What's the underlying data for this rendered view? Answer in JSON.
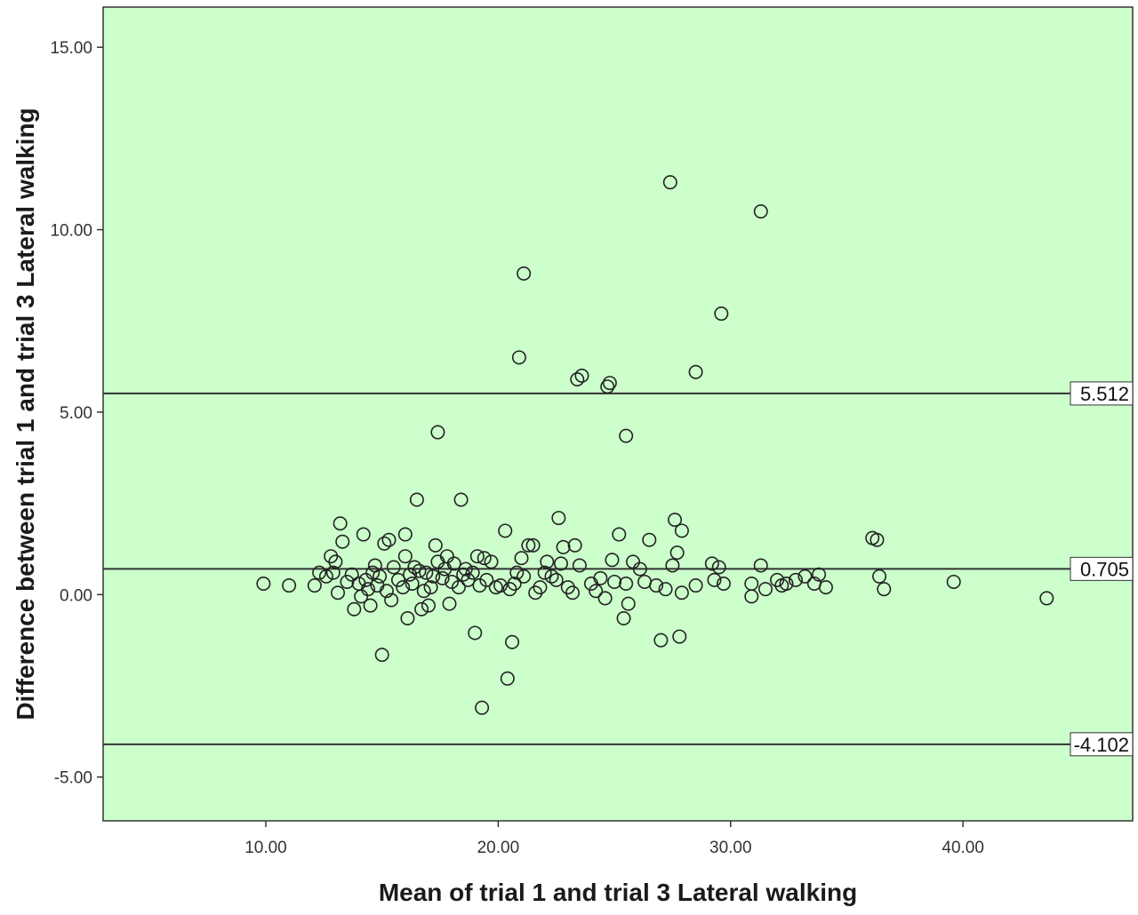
{
  "chart_data": {
    "type": "scatter",
    "xlabel": "Mean of trial 1 and trial 3 Lateral walking",
    "ylabel": "Difference between trial 1 and trial 3 Lateral walking",
    "xlim": [
      3.0,
      47.3
    ],
    "ylim": [
      -6.2,
      16.1
    ],
    "x_ticks": [
      10.0,
      20.0,
      30.0,
      40.0
    ],
    "x_tick_labels": [
      "10.00",
      "20.00",
      "30.00",
      "40.00"
    ],
    "y_ticks": [
      -5.0,
      0.0,
      5.0,
      10.0,
      15.0
    ],
    "y_tick_labels": [
      "-5.00",
      "0.00",
      "5.00",
      "10.00",
      "15.00"
    ],
    "grid": false,
    "reference_lines": [
      {
        "y": 5.512,
        "label": "5.512"
      },
      {
        "y": 0.705,
        "label": "0.705"
      },
      {
        "y": -4.102,
        "label": "-4.102"
      }
    ],
    "colors": {
      "background": "#ccffcc",
      "marker": "#222222",
      "line": "#333333"
    },
    "points": [
      [
        9.9,
        0.3
      ],
      [
        11.0,
        0.25
      ],
      [
        12.1,
        0.25
      ],
      [
        12.3,
        0.6
      ],
      [
        12.6,
        0.5
      ],
      [
        12.8,
        1.05
      ],
      [
        12.9,
        0.6
      ],
      [
        13.0,
        0.9
      ],
      [
        13.1,
        0.05
      ],
      [
        13.2,
        1.95
      ],
      [
        13.3,
        1.45
      ],
      [
        13.5,
        0.35
      ],
      [
        13.7,
        0.55
      ],
      [
        13.8,
        -0.4
      ],
      [
        14.0,
        0.3
      ],
      [
        14.1,
        -0.05
      ],
      [
        14.2,
        1.65
      ],
      [
        14.3,
        0.4
      ],
      [
        14.4,
        0.15
      ],
      [
        14.5,
        -0.3
      ],
      [
        14.6,
        0.6
      ],
      [
        14.7,
        0.8
      ],
      [
        14.8,
        0.25
      ],
      [
        14.9,
        0.5
      ],
      [
        15.0,
        -1.65
      ],
      [
        15.1,
        1.4
      ],
      [
        15.2,
        0.1
      ],
      [
        15.3,
        1.5
      ],
      [
        15.4,
        -0.15
      ],
      [
        15.5,
        0.75
      ],
      [
        15.7,
        0.4
      ],
      [
        15.9,
        0.2
      ],
      [
        16.0,
        1.05
      ],
      [
        16.0,
        1.65
      ],
      [
        16.1,
        -0.65
      ],
      [
        16.2,
        0.55
      ],
      [
        16.3,
        0.3
      ],
      [
        16.4,
        0.75
      ],
      [
        16.5,
        2.6
      ],
      [
        16.6,
        0.65
      ],
      [
        16.7,
        -0.4
      ],
      [
        16.8,
        0.1
      ],
      [
        16.9,
        0.6
      ],
      [
        17.0,
        -0.3
      ],
      [
        17.1,
        0.2
      ],
      [
        17.2,
        0.5
      ],
      [
        17.3,
        1.35
      ],
      [
        17.4,
        0.9
      ],
      [
        17.4,
        4.45
      ],
      [
        17.6,
        0.45
      ],
      [
        17.7,
        0.7
      ],
      [
        17.8,
        1.05
      ],
      [
        17.9,
        -0.25
      ],
      [
        18.0,
        0.35
      ],
      [
        18.1,
        0.85
      ],
      [
        18.3,
        0.2
      ],
      [
        18.4,
        2.6
      ],
      [
        18.5,
        0.55
      ],
      [
        18.6,
        0.7
      ],
      [
        18.7,
        0.4
      ],
      [
        18.9,
        0.6
      ],
      [
        19.0,
        -1.05
      ],
      [
        19.1,
        1.05
      ],
      [
        19.2,
        0.25
      ],
      [
        19.3,
        -3.1
      ],
      [
        19.4,
        1.0
      ],
      [
        19.5,
        0.4
      ],
      [
        19.7,
        0.9
      ],
      [
        19.9,
        0.2
      ],
      [
        20.1,
        0.25
      ],
      [
        20.3,
        1.75
      ],
      [
        20.4,
        -2.3
      ],
      [
        20.5,
        0.15
      ],
      [
        20.6,
        -1.3
      ],
      [
        20.7,
        0.3
      ],
      [
        20.8,
        0.6
      ],
      [
        20.9,
        6.5
      ],
      [
        21.0,
        1.0
      ],
      [
        21.1,
        0.5
      ],
      [
        21.1,
        8.8
      ],
      [
        21.3,
        1.35
      ],
      [
        21.5,
        1.35
      ],
      [
        21.6,
        0.05
      ],
      [
        21.8,
        0.2
      ],
      [
        22.0,
        0.6
      ],
      [
        22.1,
        0.9
      ],
      [
        22.3,
        0.5
      ],
      [
        22.5,
        0.4
      ],
      [
        22.6,
        2.1
      ],
      [
        22.7,
        0.85
      ],
      [
        22.8,
        1.3
      ],
      [
        23.0,
        0.2
      ],
      [
        23.2,
        0.05
      ],
      [
        23.3,
        1.35
      ],
      [
        23.4,
        5.9
      ],
      [
        23.5,
        0.8
      ],
      [
        23.6,
        6.0
      ],
      [
        24.0,
        0.3
      ],
      [
        24.2,
        0.1
      ],
      [
        24.4,
        0.45
      ],
      [
        24.6,
        -0.1
      ],
      [
        24.7,
        5.7
      ],
      [
        24.8,
        5.8
      ],
      [
        24.9,
        0.95
      ],
      [
        25.0,
        0.35
      ],
      [
        25.2,
        1.65
      ],
      [
        25.4,
        -0.65
      ],
      [
        25.5,
        0.3
      ],
      [
        25.5,
        4.35
      ],
      [
        25.6,
        -0.25
      ],
      [
        25.8,
        0.9
      ],
      [
        26.1,
        0.7
      ],
      [
        26.3,
        0.35
      ],
      [
        26.5,
        1.5
      ],
      [
        26.8,
        0.25
      ],
      [
        27.0,
        -1.25
      ],
      [
        27.2,
        0.15
      ],
      [
        27.4,
        11.3
      ],
      [
        27.5,
        0.8
      ],
      [
        27.6,
        2.05
      ],
      [
        27.7,
        1.15
      ],
      [
        27.8,
        -1.15
      ],
      [
        27.9,
        1.75
      ],
      [
        27.9,
        0.05
      ],
      [
        28.5,
        6.1
      ],
      [
        28.5,
        0.25
      ],
      [
        29.2,
        0.85
      ],
      [
        29.3,
        0.4
      ],
      [
        29.5,
        0.75
      ],
      [
        29.6,
        7.7
      ],
      [
        29.7,
        0.3
      ],
      [
        30.9,
        0.3
      ],
      [
        30.9,
        -0.05
      ],
      [
        31.3,
        10.5
      ],
      [
        31.3,
        0.8
      ],
      [
        31.5,
        0.15
      ],
      [
        32.0,
        0.4
      ],
      [
        32.2,
        0.25
      ],
      [
        32.4,
        0.3
      ],
      [
        32.8,
        0.4
      ],
      [
        33.2,
        0.5
      ],
      [
        33.6,
        0.3
      ],
      [
        33.8,
        0.55
      ],
      [
        34.1,
        0.2
      ],
      [
        36.1,
        1.55
      ],
      [
        36.3,
        1.5
      ],
      [
        36.4,
        0.5
      ],
      [
        36.6,
        0.15
      ],
      [
        39.6,
        0.35
      ],
      [
        43.6,
        -0.1
      ]
    ]
  }
}
